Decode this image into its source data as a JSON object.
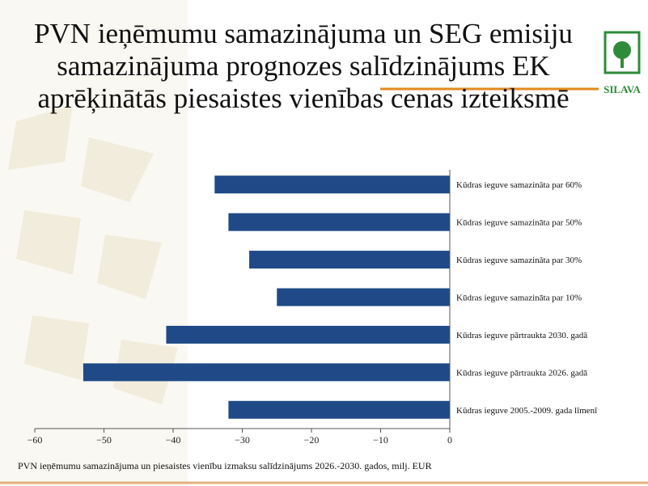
{
  "chart_data": {
    "type": "barh",
    "title": "PVN ieņēmumu samazinājuma un SEG emisiju samazinājuma prognozes salīdzinājums EK aprēķinātās piesaistes vienības cenas izteiksmē",
    "logo": "SILAVA",
    "categories": [
      "Kūdras ieguve samazināta par 60%",
      "Kūdras ieguve samazināta par 50%",
      "Kūdras ieguve samazināta par 30%",
      "Kūdras ieguve samazināta par 10%",
      "Kūdras ieguve pārtraukta 2030. gadā",
      "Kūdras ieguve pārtraukta 2026. gadā",
      "Kūdras ieguve 2005.-2009. gada līmenī"
    ],
    "values": [
      -34,
      -32,
      -29,
      -25,
      -41,
      -53,
      -32
    ],
    "color": "#1f4a87",
    "xlim": [
      -60,
      0
    ],
    "xticks": [
      {
        "value": -60,
        "label": "−60"
      },
      {
        "value": -50,
        "label": "−50"
      },
      {
        "value": -40,
        "label": "−40"
      },
      {
        "value": -30,
        "label": "−30"
      },
      {
        "value": -20,
        "label": "−20"
      },
      {
        "value": -10,
        "label": "−10"
      },
      0
    ],
    "xlabel": "PVN ieņēmumu samazinājuma un piesaistes vienību izmaksu salīdzinājums 2026.-2030. gados, milj. EUR"
  }
}
